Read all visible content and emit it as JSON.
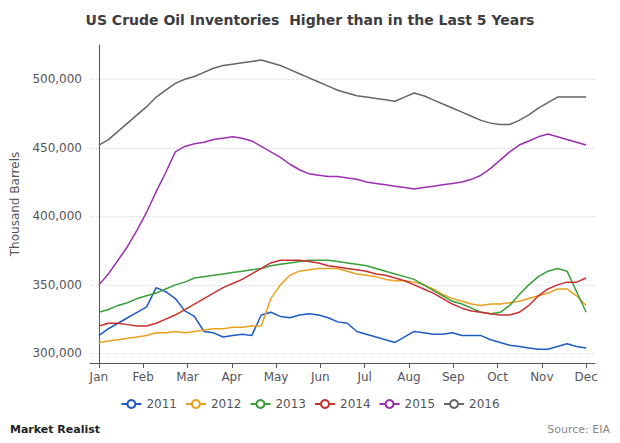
{
  "chart_data": {
    "type": "line",
    "title": "US Crude Oil Inventories  Higher than in the Last 5 Years",
    "ylabel": "Thousand Barrels",
    "x": [
      0,
      0.2157,
      0.4314,
      0.6471,
      0.8627,
      1.0784,
      1.2941,
      1.5098,
      1.7255,
      1.9412,
      2.1569,
      2.3725,
      2.5882,
      2.8039,
      3.0196,
      3.2353,
      3.451,
      3.6667,
      3.8824,
      4.098,
      4.3137,
      4.5294,
      4.7451,
      4.9608,
      5.1765,
      5.3922,
      5.6078,
      5.8235,
      6.0392,
      6.2549,
      6.4706,
      6.6863,
      6.902,
      7.1176,
      7.3333,
      7.549,
      7.7647,
      7.9804,
      8.1961,
      8.4118,
      8.6275,
      8.8431,
      9.0588,
      9.2745,
      9.4902,
      9.7059,
      9.9216,
      10.1373,
      10.3529,
      10.5686,
      10.7843,
      11
    ],
    "xlim": [
      -0.2,
      11.2
    ],
    "xticks": [
      {
        "value": 0,
        "label": "Jan"
      },
      {
        "value": 1,
        "label": "Feb"
      },
      {
        "value": 2,
        "label": "Mar"
      },
      {
        "value": 3,
        "label": "Apr"
      },
      {
        "value": 4,
        "label": "May"
      },
      {
        "value": 5,
        "label": "Jun"
      },
      {
        "value": 6,
        "label": "Jul"
      },
      {
        "value": 7,
        "label": "Aug"
      },
      {
        "value": 8,
        "label": "Sep"
      },
      {
        "value": 9,
        "label": "Oct"
      },
      {
        "value": 10,
        "label": "Nov"
      },
      {
        "value": 11,
        "label": "Dec"
      }
    ],
    "ylim": [
      293000,
      525000
    ],
    "yticks": [
      {
        "value": 300000,
        "label": "300,000"
      },
      {
        "value": 350000,
        "label": "350,000"
      },
      {
        "value": 400000,
        "label": "400,000"
      },
      {
        "value": 450000,
        "label": "450,000"
      },
      {
        "value": 500000,
        "label": "500,000"
      }
    ],
    "grid": true,
    "legend": "bottom",
    "annotations": [
      {
        "text": "Market Realist"
      },
      {
        "text": "Source: EIA"
      }
    ],
    "series": [
      {
        "name": "2011",
        "color": "#1f5bc4",
        "values": [
          313000,
          318000,
          322000,
          326000,
          330000,
          334000,
          348000,
          345000,
          340000,
          331000,
          327000,
          316000,
          315000,
          312000,
          313000,
          314000,
          313000,
          328000,
          330000,
          327000,
          326000,
          328000,
          329000,
          328000,
          326000,
          323000,
          322000,
          316000,
          314000,
          312000,
          310000,
          308000,
          312000,
          316000,
          315000,
          314000,
          314000,
          315000,
          313000,
          313000,
          313000,
          310000,
          308000,
          306000,
          305000,
          304000,
          303000,
          303000,
          305000,
          307000,
          305000,
          304000
        ]
      },
      {
        "name": "2012",
        "color": "#e8a020",
        "values": [
          308000,
          309000,
          310000,
          311000,
          312000,
          313000,
          315000,
          315000,
          316000,
          315000,
          316000,
          317000,
          318000,
          318000,
          319000,
          319000,
          320000,
          320000,
          340000,
          350000,
          357000,
          360000,
          361000,
          362000,
          362000,
          362000,
          360000,
          358000,
          357000,
          356000,
          354000,
          353000,
          353000,
          352000,
          350000,
          347000,
          343000,
          340000,
          338000,
          336000,
          335000,
          336000,
          336000,
          337000,
          338000,
          340000,
          342000,
          344000,
          347000,
          347000,
          342000,
          335000
        ]
      },
      {
        "name": "2013",
        "color": "#3a9e3a",
        "values": [
          330000,
          332000,
          335000,
          337000,
          340000,
          342000,
          344000,
          347000,
          350000,
          352000,
          355000,
          356000,
          357000,
          358000,
          359000,
          360000,
          361000,
          362000,
          364000,
          365000,
          366000,
          367000,
          368000,
          368000,
          368000,
          367000,
          366000,
          365000,
          364000,
          362000,
          360000,
          358000,
          356000,
          354000,
          350000,
          346000,
          342000,
          338000,
          336000,
          333000,
          330000,
          329000,
          330000,
          335000,
          343000,
          350000,
          356000,
          360000,
          362000,
          360000,
          345000,
          330000
        ]
      },
      {
        "name": "2014",
        "color": "#c83030",
        "values": [
          320000,
          322000,
          322000,
          321000,
          320000,
          320000,
          322000,
          325000,
          328000,
          332000,
          336000,
          340000,
          344000,
          348000,
          351000,
          354000,
          358000,
          362000,
          366000,
          368000,
          368000,
          368000,
          367000,
          366000,
          364000,
          363000,
          362000,
          361000,
          360000,
          358000,
          357000,
          355000,
          353000,
          350000,
          347000,
          344000,
          340000,
          336000,
          333000,
          331000,
          330000,
          329000,
          328000,
          328000,
          330000,
          335000,
          342000,
          347000,
          350000,
          352000,
          352000,
          355000
        ]
      },
      {
        "name": "2015",
        "color": "#9b30b0",
        "values": [
          350000,
          358000,
          368000,
          378000,
          390000,
          403000,
          418000,
          432000,
          447000,
          451000,
          453000,
          454000,
          456000,
          457000,
          458000,
          457000,
          455000,
          451000,
          447000,
          443000,
          438000,
          434000,
          431000,
          430000,
          429000,
          429000,
          428000,
          427000,
          425000,
          424000,
          423000,
          422000,
          421000,
          420000,
          421000,
          422000,
          423000,
          424000,
          425000,
          427000,
          430000,
          435000,
          441000,
          447000,
          452000,
          455000,
          458000,
          460000,
          458000,
          456000,
          454000,
          452000
        ]
      },
      {
        "name": "2016",
        "color": "#666666",
        "values": [
          452000,
          456000,
          462000,
          468000,
          474000,
          480000,
          487000,
          492000,
          497000,
          500000,
          502000,
          505000,
          508000,
          510000,
          511000,
          512000,
          513000,
          514000,
          512000,
          510000,
          507000,
          504000,
          501000,
          498000,
          495000,
          492000,
          490000,
          488000,
          487000,
          486000,
          485000,
          484000,
          487000,
          490000,
          488000,
          485000,
          482000,
          479000,
          476000,
          473000,
          470000,
          468000,
          467000,
          467000,
          470000,
          474000,
          479000,
          483000,
          487000,
          487000,
          487000,
          487000
        ]
      }
    ]
  }
}
